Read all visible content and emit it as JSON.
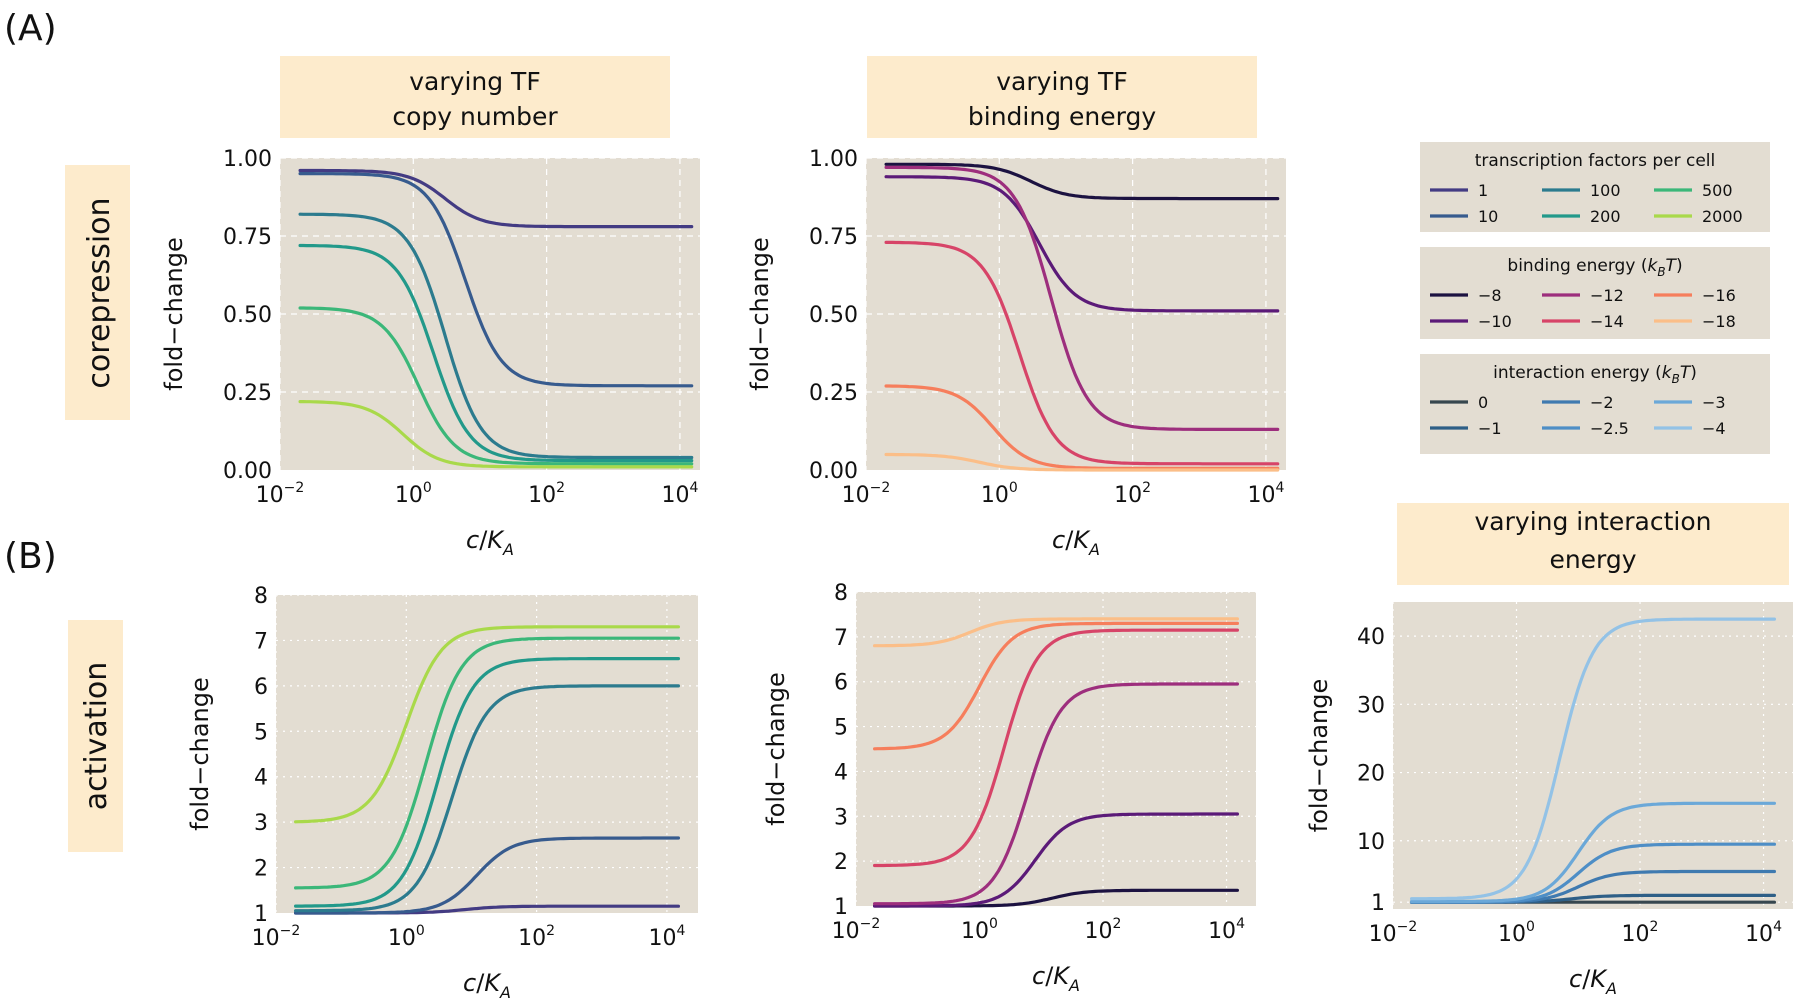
{
  "panel_labels": {
    "a": "(A)",
    "b": "(B)"
  },
  "row_labels": {
    "corepression": "corepression",
    "activation": "activation"
  },
  "headers": {
    "copy_number": [
      "varying TF",
      "copy number"
    ],
    "binding_energy": [
      "varying TF",
      "binding energy"
    ],
    "interaction_energy": [
      "varying interaction",
      "energy"
    ]
  },
  "colors": {
    "header_bg": "#fdebcc",
    "plot_bg": "#e3ddd2",
    "grid": "#ffffff",
    "copy_number": [
      "#433b83",
      "#375b8e",
      "#2c7b8e",
      "#22998a",
      "#3bb779",
      "#a9d94a"
    ],
    "binding_energy": [
      "#1c1241",
      "#5b1a78",
      "#9d2e7d",
      "#d74468",
      "#f67e5c",
      "#fbbe88"
    ],
    "interaction_energy": [
      "#37474f",
      "#2e5f87",
      "#3f7ab0",
      "#4e8ec6",
      "#6ba8d8",
      "#93c2e6"
    ]
  },
  "legends": [
    {
      "title": "transcription factors per cell",
      "series": "copy_number",
      "items": [
        "1",
        "10",
        "100",
        "200",
        "500",
        "2000"
      ]
    },
    {
      "title_main": "binding energy (",
      "title_k": "k",
      "title_sub": "B",
      "title_t": "T",
      "title_close": ")",
      "series": "binding_energy",
      "items": [
        "−8",
        "−10",
        "−12",
        "−14",
        "−16",
        "−18"
      ]
    },
    {
      "title_main": "interaction energy (",
      "title_k": "k",
      "title_sub": "B",
      "title_t": "T",
      "title_close": ")",
      "series": "interaction_energy",
      "items": [
        "0",
        "−1",
        "−2",
        "−2.5",
        "−3",
        "−4"
      ]
    }
  ],
  "axis_labels": {
    "y": "fold−change",
    "x_c": "c",
    "x_slash": "/",
    "x_K": "K",
    "x_A": "A"
  },
  "chart_data": [
    {
      "type": "line",
      "id": "corepression-copy-number",
      "xlabel": "c/K_A",
      "ylabel": "fold−change",
      "xscale": "log",
      "xlim": [
        0.01,
        20000
      ],
      "ylim": [
        0,
        1.0
      ],
      "x_ticks": [
        "10^-2",
        "10^0",
        "10^2",
        "10^4"
      ],
      "y_ticks": [
        "0.00",
        "0.25",
        "0.50",
        "0.75",
        "1.00"
      ],
      "series": [
        {
          "name": "1",
          "y_low": 0.96,
          "y_high": 0.78,
          "midpoint": 3
        },
        {
          "name": "10",
          "y_low": 0.95,
          "y_high": 0.27,
          "midpoint": 6
        },
        {
          "name": "100",
          "y_low": 0.82,
          "y_high": 0.04,
          "midpoint": 3
        },
        {
          "name": "200",
          "y_low": 0.72,
          "y_high": 0.03,
          "midpoint": 2
        },
        {
          "name": "500",
          "y_low": 0.52,
          "y_high": 0.02,
          "midpoint": 1.2
        },
        {
          "name": "2000",
          "y_low": 0.22,
          "y_high": 0.01,
          "midpoint": 0.7
        }
      ]
    },
    {
      "type": "line",
      "id": "corepression-binding-energy",
      "xlabel": "c/K_A",
      "ylabel": "fold−change",
      "xscale": "log",
      "xlim": [
        0.01,
        20000
      ],
      "ylim": [
        0,
        1.0
      ],
      "x_ticks": [
        "10^-2",
        "10^0",
        "10^2",
        "10^4"
      ],
      "y_ticks": [
        "0.00",
        "0.25",
        "0.50",
        "0.75",
        "1.00"
      ],
      "series": [
        {
          "name": "−8",
          "y_low": 0.98,
          "y_high": 0.87,
          "midpoint": 3
        },
        {
          "name": "−10",
          "y_low": 0.94,
          "y_high": 0.51,
          "midpoint": 4
        },
        {
          "name": "−12",
          "y_low": 0.97,
          "y_high": 0.13,
          "midpoint": 6
        },
        {
          "name": "−14",
          "y_low": 0.73,
          "y_high": 0.02,
          "midpoint": 2
        },
        {
          "name": "−16",
          "y_low": 0.27,
          "y_high": 0.005,
          "midpoint": 0.8
        },
        {
          "name": "−18",
          "y_low": 0.05,
          "y_high": 0.0,
          "midpoint": 0.5
        }
      ]
    },
    {
      "type": "line",
      "id": "activation-copy-number",
      "xlabel": "c/K_A",
      "ylabel": "fold−change",
      "xscale": "log",
      "xlim": [
        0.01,
        30000
      ],
      "ylim": [
        1,
        8
      ],
      "x_ticks": [
        "10^-2",
        "10^0",
        "10^2",
        "10^4"
      ],
      "y_ticks": [
        "1",
        "2",
        "3",
        "4",
        "5",
        "6",
        "7",
        "8"
      ],
      "series": [
        {
          "name": "1",
          "y_low": 1.0,
          "y_high": 1.15,
          "midpoint": 8
        },
        {
          "name": "10",
          "y_low": 1.0,
          "y_high": 2.65,
          "midpoint": 12
        },
        {
          "name": "100",
          "y_low": 1.05,
          "y_high": 6.0,
          "midpoint": 5
        },
        {
          "name": "200",
          "y_low": 1.15,
          "y_high": 6.6,
          "midpoint": 3
        },
        {
          "name": "500",
          "y_low": 1.55,
          "y_high": 7.05,
          "midpoint": 2
        },
        {
          "name": "2000",
          "y_low": 3.0,
          "y_high": 7.3,
          "midpoint": 1
        }
      ]
    },
    {
      "type": "line",
      "id": "activation-binding-energy",
      "xlabel": "c/K_A",
      "ylabel": "fold−change",
      "xscale": "log",
      "xlim": [
        0.01,
        30000
      ],
      "ylim": [
        1,
        8
      ],
      "x_ticks": [
        "10^-2",
        "10^0",
        "10^2",
        "10^4"
      ],
      "y_ticks": [
        "1",
        "2",
        "3",
        "4",
        "5",
        "6",
        "7",
        "8"
      ],
      "series": [
        {
          "name": "−8",
          "y_low": 1.0,
          "y_high": 1.35,
          "midpoint": 15
        },
        {
          "name": "−10",
          "y_low": 1.0,
          "y_high": 3.05,
          "midpoint": 8
        },
        {
          "name": "−12",
          "y_low": 1.05,
          "y_high": 5.95,
          "midpoint": 6
        },
        {
          "name": "−14",
          "y_low": 1.9,
          "y_high": 7.15,
          "midpoint": 2.5
        },
        {
          "name": "−16",
          "y_low": 4.5,
          "y_high": 7.3,
          "midpoint": 1
        },
        {
          "name": "−18",
          "y_low": 6.8,
          "y_high": 7.4,
          "midpoint": 0.7
        }
      ]
    },
    {
      "type": "line",
      "id": "activation-interaction-energy",
      "xlabel": "c/K_A",
      "ylabel": "fold−change",
      "xscale": "log",
      "xlim": [
        0.01,
        30000
      ],
      "ylim": [
        0,
        45
      ],
      "x_ticks": [
        "10^-2",
        "10^0",
        "10^2",
        "10^4"
      ],
      "y_ticks": [
        "1",
        "10",
        "20",
        "30",
        "40"
      ],
      "y_tick_values": [
        1,
        10,
        20,
        30,
        40
      ],
      "series": [
        {
          "name": "0",
          "y_low": 1.0,
          "y_high": 1.0,
          "midpoint": 5
        },
        {
          "name": "−1",
          "y_low": 1.0,
          "y_high": 2.0,
          "midpoint": 8
        },
        {
          "name": "−2",
          "y_low": 1.0,
          "y_high": 5.5,
          "midpoint": 10
        },
        {
          "name": "−2.5",
          "y_low": 1.0,
          "y_high": 9.5,
          "midpoint": 10
        },
        {
          "name": "−3",
          "y_low": 1.1,
          "y_high": 15.5,
          "midpoint": 10
        },
        {
          "name": "−4",
          "y_low": 1.5,
          "y_high": 42.5,
          "midpoint": 5
        }
      ]
    }
  ]
}
